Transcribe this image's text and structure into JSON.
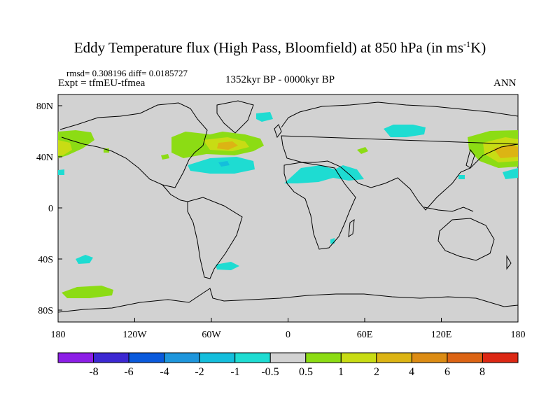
{
  "title": {
    "main": "Eddy Temperature flux (High Pass, Bloomfield) at 850 hPa (in ms",
    "sup": "-1",
    "end": "K)"
  },
  "stats": "rmsd= 0.308196 diff= 0.0185727",
  "experiment": "Expt = tfmEU-tfmea",
  "period": "1352kyr BP - 0000kyr BP",
  "season": "ANN",
  "lat_labels": [
    "80N",
    "40N",
    "0",
    "40S",
    "80S"
  ],
  "lon_labels": [
    "180",
    "120W",
    "60W",
    "0",
    "60E",
    "120E",
    "180"
  ],
  "colorbar": {
    "labels": [
      "-8",
      "-6",
      "-4",
      "-2",
      "-1",
      "-0.5",
      "0.5",
      "1",
      "2",
      "4",
      "6",
      "8"
    ],
    "colors": [
      "#8c1ee6",
      "#3c28d2",
      "#0a5adc",
      "#1e96dc",
      "#14bedc",
      "#1edcd2",
      "#d2d2d2",
      "#8cdc14",
      "#c8dc14",
      "#dcb414",
      "#dc8c14",
      "#dc6414",
      "#dc2814"
    ]
  },
  "colors": {
    "land_bg": "#d2d2d2",
    "green": "#8cdc14",
    "yellow_green": "#c8dc14",
    "orange": "#dcb414",
    "cyan": "#1edcd2",
    "teal": "#14bedc"
  }
}
